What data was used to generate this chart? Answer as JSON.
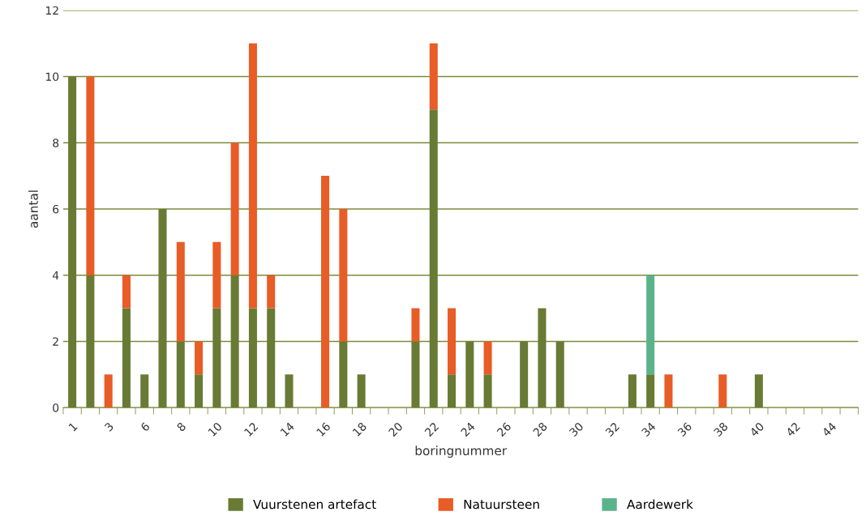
{
  "chart_data": {
    "type": "bar",
    "stacked": true,
    "xlabel": "boringnummer",
    "ylabel": "aantal",
    "categories": [
      "1",
      null,
      "3",
      null,
      "6",
      null,
      "8",
      null,
      "10",
      null,
      "12",
      null,
      "14",
      null,
      "16",
      null,
      "18",
      null,
      "20",
      null,
      "22",
      null,
      "24",
      null,
      "26",
      null,
      "28",
      null,
      "30",
      null,
      "32",
      null,
      "34",
      null,
      "36",
      null,
      "38",
      null,
      "40",
      null,
      "42",
      null,
      "44",
      null
    ],
    "series": [
      {
        "name": "Vuurstenen artefact",
        "color": "#687a34",
        "values": [
          10,
          4,
          0,
          3,
          1,
          6,
          2,
          1,
          3,
          4,
          3,
          3,
          1,
          0,
          0,
          2,
          1,
          0,
          0,
          2,
          9,
          1,
          2,
          1,
          0,
          2,
          3,
          2,
          0,
          0,
          0,
          1,
          1,
          0,
          0,
          0,
          0,
          0,
          1,
          0,
          0,
          0,
          0,
          0
        ]
      },
      {
        "name": "Natuursteen",
        "color": "#e85c26",
        "values": [
          0,
          6,
          1,
          1,
          0,
          0,
          3,
          1,
          2,
          4,
          8,
          1,
          0,
          0,
          7,
          4,
          0,
          0,
          0,
          1,
          2,
          2,
          0,
          1,
          0,
          0,
          0,
          0,
          0,
          0,
          0,
          0,
          0,
          1,
          0,
          0,
          1,
          0,
          0,
          0,
          0,
          0,
          0,
          0
        ]
      },
      {
        "name": "Aardewerk",
        "color": "#5bb38c",
        "values": [
          0,
          0,
          0,
          0,
          0,
          0,
          0,
          0,
          0,
          0,
          0,
          0,
          0,
          0,
          0,
          0,
          0,
          0,
          0,
          0,
          0,
          0,
          0,
          0,
          0,
          0,
          0,
          0,
          0,
          0,
          0,
          0,
          3,
          0,
          0,
          0,
          0,
          0,
          0,
          0,
          0,
          0,
          0,
          0
        ]
      }
    ],
    "ylim": [
      0,
      12
    ],
    "yticks": [
      0,
      2,
      4,
      6,
      8,
      10,
      12
    ],
    "grid": "y",
    "legend": "bottom"
  }
}
